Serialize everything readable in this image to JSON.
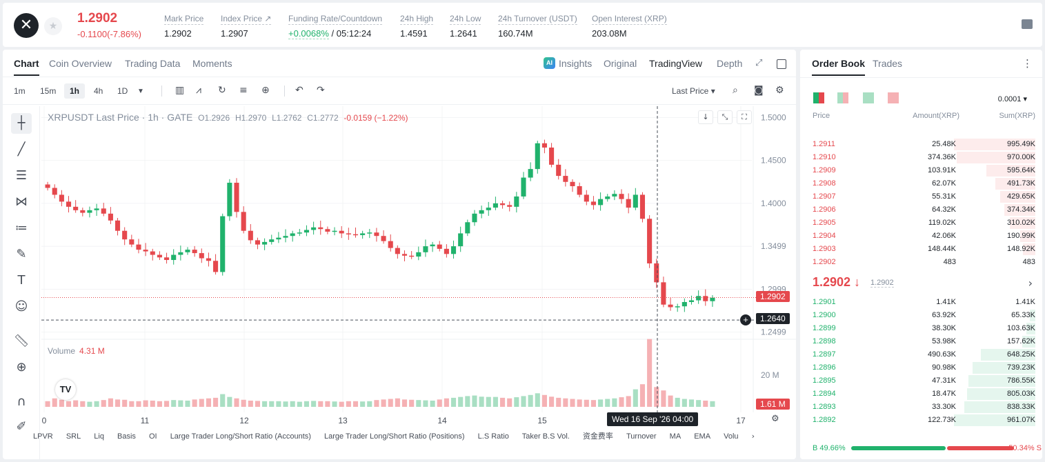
{
  "header": {
    "logo_glyph": "✕",
    "last_price": "1.2902",
    "change": "-0.1100(-7.86%)",
    "stats": [
      {
        "label": "Mark Price",
        "value": "1.2902"
      },
      {
        "label": "Index Price ↗",
        "value": "1.2907"
      },
      {
        "label": "Funding Rate/Countdown",
        "value_green": "+0.0068%",
        "value": "/ 05:12:24"
      },
      {
        "label": "24h High",
        "value": "1.4591"
      },
      {
        "label": "24h Low",
        "value": "1.2641"
      },
      {
        "label": "24h Turnover (USDT)",
        "value": "160.74M"
      },
      {
        "label": "Open Interest (XRP)",
        "value": "203.08M"
      }
    ]
  },
  "chart_tabs": {
    "left": [
      "Chart",
      "Coin Overview",
      "Trading Data",
      "Moments"
    ],
    "right": [
      "Insights",
      "Original",
      "TradingView",
      "Depth"
    ],
    "ai_badge": "AI"
  },
  "toolbar": {
    "timeframes": [
      "1m",
      "15m",
      "1h",
      "4h",
      "1D"
    ],
    "dropdown_arrow": "▼",
    "last_price_select": "Last Price ▾"
  },
  "legend": {
    "title": "XRPUSDT Last Price · 1h · GATE",
    "o": "O1.2926",
    "h": "H1.2970",
    "l": "L1.2762",
    "c": "C1.2772",
    "chg": "-0.0159 (−1.22%)"
  },
  "volume": {
    "label": "Volume",
    "value": "4.31 M",
    "axis_label": "20 M",
    "tag": "1.61 M"
  },
  "price_tags": {
    "last": "1.2902",
    "cursor": "1.2640"
  },
  "date_tag": "Wed 16 Sep '26   04:00",
  "bottom_indicators": [
    "LPVR",
    "SRL",
    "Liq",
    "Basis",
    "OI",
    "Large Trader Long/Short Ratio (Accounts)",
    "Large Trader Long/Short Ratio (Positions)",
    "L.S Ratio",
    "Taker B.S Vol.",
    "资金费率",
    "Turnover",
    "MA",
    "EMA",
    "Volu"
  ],
  "chart_data": {
    "type": "candlestick",
    "title": "XRPUSDT Last Price · 1h · GATE",
    "x_ticks": [
      "0",
      "11",
      "12",
      "13",
      "14",
      "15",
      "17"
    ],
    "y_ticks": [
      1.5,
      1.45,
      1.4,
      1.3499,
      1.2999,
      1.2499
    ],
    "ylim": [
      1.24,
      1.51
    ],
    "close_path": [
      1.418,
      1.41,
      1.402,
      1.396,
      1.392,
      1.389,
      1.392,
      1.394,
      1.388,
      1.38,
      1.368,
      1.358,
      1.352,
      1.346,
      1.344,
      1.34,
      1.337,
      1.334,
      1.34,
      1.343,
      1.346,
      1.342,
      1.336,
      1.333,
      1.32,
      1.385,
      1.424,
      1.39,
      1.368,
      1.357,
      1.352,
      1.355,
      1.358,
      1.36,
      1.362,
      1.365,
      1.366,
      1.369,
      1.372,
      1.37,
      1.367,
      1.368,
      1.365,
      1.364,
      1.363,
      1.365,
      1.366,
      1.362,
      1.356,
      1.348,
      1.341,
      1.339,
      1.338,
      1.343,
      1.35,
      1.352,
      1.347,
      1.341,
      1.35,
      1.365,
      1.378,
      1.388,
      1.392,
      1.395,
      1.4,
      1.398,
      1.396,
      1.408,
      1.43,
      1.44,
      1.47,
      1.465,
      1.445,
      1.432,
      1.425,
      1.42,
      1.41,
      1.402,
      1.398,
      1.405,
      1.408,
      1.411,
      1.405,
      1.395,
      1.41,
      1.382,
      1.33,
      1.308,
      1.282,
      1.279,
      1.28,
      1.285,
      1.287,
      1.292,
      1.286,
      1.29
    ],
    "volume_path": [
      2,
      3,
      2.5,
      2,
      2.3,
      2,
      1.8,
      2,
      2.4,
      3,
      2.6,
      2.5,
      2,
      2,
      2.3,
      2.2,
      2,
      2.1,
      2.4,
      2.3,
      2.2,
      2.6,
      2.8,
      3,
      3.2,
      4.5,
      3.5,
      3,
      2.5,
      2.2,
      2.1,
      2,
      2,
      2,
      1.9,
      2,
      1.8,
      2,
      2.1,
      2,
      2,
      1.9,
      1.8,
      2,
      2,
      1.9,
      2,
      2.4,
      2.6,
      2.8,
      3,
      2.6,
      2.5,
      2.4,
      2.3,
      2.2,
      2.6,
      3,
      3.2,
      3.5,
      3.8,
      4,
      3.6,
      3.5,
      3.5,
      3.2,
      3,
      3.4,
      3.8,
      4.2,
      4.8,
      4.2,
      3.6,
      3.2,
      3,
      2.8,
      2.6,
      2.5,
      2.4,
      2.6,
      2.8,
      3,
      3.4,
      3.8,
      6.2,
      8,
      24,
      7,
      5.8,
      4,
      3.2,
      2.8,
      2.6,
      2.4,
      2.2,
      2
    ]
  },
  "orderbook": {
    "tabs": [
      "Order Book",
      "Trades"
    ],
    "tick_size": "0.0001 ▾",
    "headers": [
      "Price",
      "Amount(XRP)",
      "Sum(XRP)"
    ],
    "asks": [
      {
        "price": "1.2911",
        "amount": "25.48K",
        "sum": "995.49K",
        "depth": 1.0
      },
      {
        "price": "1.2910",
        "amount": "374.36K",
        "sum": "970.00K",
        "depth": 0.97
      },
      {
        "price": "1.2909",
        "amount": "103.91K",
        "sum": "595.64K",
        "depth": 0.6
      },
      {
        "price": "1.2908",
        "amount": "62.07K",
        "sum": "491.73K",
        "depth": 0.49
      },
      {
        "price": "1.2907",
        "amount": "55.31K",
        "sum": "429.65K",
        "depth": 0.43
      },
      {
        "price": "1.2906",
        "amount": "64.32K",
        "sum": "374.34K",
        "depth": 0.38
      },
      {
        "price": "1.2905",
        "amount": "119.02K",
        "sum": "310.02K",
        "depth": 0.31
      },
      {
        "price": "1.2904",
        "amount": "42.06K",
        "sum": "190.99K",
        "depth": 0.19
      },
      {
        "price": "1.2903",
        "amount": "148.44K",
        "sum": "148.92K",
        "depth": 0.15
      },
      {
        "price": "1.2902",
        "amount": "483",
        "sum": "483",
        "depth": 0.0
      }
    ],
    "mid_price": "1.2902 ↓",
    "mid_sub": "1.2902",
    "bids": [
      {
        "price": "1.2901",
        "amount": "1.41K",
        "sum": "1.41K",
        "depth": 0.0
      },
      {
        "price": "1.2900",
        "amount": "63.92K",
        "sum": "65.33K",
        "depth": 0.07
      },
      {
        "price": "1.2899",
        "amount": "38.30K",
        "sum": "103.63K",
        "depth": 0.11
      },
      {
        "price": "1.2898",
        "amount": "53.98K",
        "sum": "157.62K",
        "depth": 0.16
      },
      {
        "price": "1.2897",
        "amount": "490.63K",
        "sum": "648.25K",
        "depth": 0.67
      },
      {
        "price": "1.2896",
        "amount": "90.98K",
        "sum": "739.23K",
        "depth": 0.77
      },
      {
        "price": "1.2895",
        "amount": "47.31K",
        "sum": "786.55K",
        "depth": 0.82
      },
      {
        "price": "1.2894",
        "amount": "18.47K",
        "sum": "805.03K",
        "depth": 0.84
      },
      {
        "price": "1.2893",
        "amount": "33.30K",
        "sum": "838.33K",
        "depth": 0.87
      },
      {
        "price": "1.2892",
        "amount": "122.73K",
        "sum": "961.07K",
        "depth": 1.0
      }
    ],
    "buy_ratio": "B 49.66%",
    "sell_ratio": "50.34% S",
    "buy_fraction": 0.4966
  },
  "colors": {
    "up": "#20b26c",
    "down": "#e5484d",
    "up_vol": "#a9dfc3",
    "down_vol": "#f5b1b4"
  }
}
